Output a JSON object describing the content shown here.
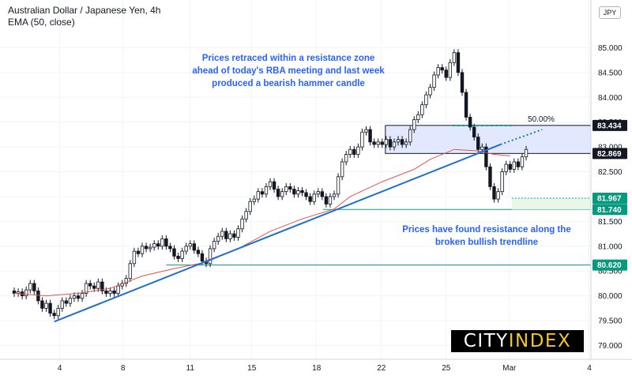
{
  "header": {
    "symbol": "Australian Dollar / Japanese Yen, 4h",
    "indicator": "EMA (50, close)",
    "currency": "JPY"
  },
  "annotations": {
    "top_line1": "Prices retraced within a resistance zone",
    "top_line2": "ahead of today's RBA meeting and last week",
    "top_line3": "produced a bearish hammer candle",
    "mid_line1": "Prices have found resistance along the",
    "mid_line2": "broken bullish trendline",
    "fib_label": "50.00%"
  },
  "logo": {
    "part1": "CITY ",
    "part2": "INDEX"
  },
  "colors": {
    "up_candle": "#ffffff",
    "down_candle": "#131722",
    "ema": "#e0544f",
    "trendline": "#1f6fd1",
    "zone_fill": "#dbe3ff",
    "support": "#089981",
    "resistance_tag": "#131722",
    "support_tag": "#089981",
    "annotation": "#2962ff",
    "fib": "#9c6fd3"
  },
  "chart_data": {
    "type": "candlestick",
    "title": "Australian Dollar / Japanese Yen, 4h",
    "x_tick_labels": [
      "4",
      "8",
      "11",
      "15",
      "18",
      "22",
      "25",
      "Mar",
      "4"
    ],
    "y_ticks": [
      79.0,
      79.5,
      80.0,
      80.5,
      81.0,
      81.5,
      82.0,
      82.5,
      83.0,
      83.5,
      84.0,
      84.5,
      85.0
    ],
    "ylim": [
      78.75,
      85.25
    ],
    "price_tags": [
      {
        "value": "83.434",
        "kind": "resistance"
      },
      {
        "value": "82.869",
        "kind": "resistance"
      },
      {
        "value": "81.967",
        "kind": "support"
      },
      {
        "value": "81.740",
        "kind": "support"
      },
      {
        "value": "80.620",
        "kind": "support"
      }
    ],
    "resistance_zone": [
      82.869,
      83.434
    ],
    "support_levels": [
      81.967,
      81.74,
      80.62
    ],
    "fib_level": 83.434,
    "trendline": {
      "start_day": 2.5,
      "start_price": 79.48,
      "end_day": 30.4,
      "end_price": 83.05
    },
    "trendline_extension": {
      "end_day": 33.0,
      "end_price": 83.35
    },
    "ema_series": {
      "name": "EMA (50, close)",
      "points": [
        [
          0,
          80.05
        ],
        [
          2,
          80.0
        ],
        [
          4,
          80.05
        ],
        [
          6,
          80.15
        ],
        [
          8,
          80.4
        ],
        [
          10,
          80.55
        ],
        [
          12,
          80.68
        ],
        [
          14,
          80.95
        ],
        [
          16,
          81.3
        ],
        [
          18,
          81.55
        ],
        [
          20,
          81.75
        ],
        [
          21,
          82.0
        ],
        [
          23,
          82.3
        ],
        [
          25,
          82.55
        ],
        [
          26,
          82.75
        ],
        [
          27.5,
          82.95
        ],
        [
          29,
          82.92
        ],
        [
          30,
          82.85
        ],
        [
          31,
          82.82
        ]
      ]
    },
    "candles": [
      [
        0.0,
        80.1,
        80.05
      ],
      [
        0.25,
        80.05,
        80.08
      ],
      [
        0.5,
        80.08,
        80.0
      ],
      [
        0.75,
        80.0,
        80.12
      ],
      [
        1.0,
        80.12,
        80.25
      ],
      [
        1.25,
        80.25,
        80.1
      ],
      [
        1.5,
        80.1,
        79.9
      ],
      [
        1.75,
        79.9,
        79.75
      ],
      [
        2.0,
        79.75,
        79.85
      ],
      [
        2.25,
        79.85,
        79.65
      ],
      [
        2.5,
        79.65,
        79.6
      ],
      [
        2.75,
        79.6,
        79.75
      ],
      [
        3.0,
        79.75,
        79.9
      ],
      [
        3.25,
        79.9,
        79.85
      ],
      [
        3.5,
        79.85,
        79.95
      ],
      [
        3.75,
        79.95,
        80.0
      ],
      [
        4.0,
        80.0,
        79.95
      ],
      [
        4.25,
        79.95,
        80.05
      ],
      [
        4.5,
        80.05,
        80.25
      ],
      [
        4.75,
        80.25,
        80.2
      ],
      [
        5.0,
        80.2,
        80.15
      ],
      [
        5.25,
        80.15,
        80.28
      ],
      [
        5.5,
        80.28,
        80.1
      ],
      [
        5.75,
        80.1,
        80.05
      ],
      [
        6.0,
        80.05,
        80.1
      ],
      [
        6.25,
        80.1,
        80.05
      ],
      [
        6.5,
        80.05,
        80.2
      ],
      [
        6.75,
        80.2,
        80.25
      ],
      [
        7.0,
        80.25,
        80.35
      ],
      [
        7.25,
        80.35,
        80.65
      ],
      [
        7.5,
        80.65,
        80.9
      ],
      [
        7.75,
        80.9,
        80.85
      ],
      [
        8.0,
        80.85,
        81.0
      ],
      [
        8.25,
        81.0,
        80.95
      ],
      [
        8.5,
        80.95,
        80.98
      ],
      [
        8.75,
        80.98,
        81.05
      ],
      [
        9.0,
        81.05,
        81.0
      ],
      [
        9.25,
        81.0,
        81.15
      ],
      [
        9.5,
        81.15,
        81.0
      ],
      [
        9.75,
        81.0,
        80.95
      ],
      [
        10.0,
        80.95,
        80.8
      ],
      [
        10.25,
        80.8,
        80.75
      ],
      [
        10.5,
        80.75,
        80.9
      ],
      [
        10.75,
        80.9,
        81.0
      ],
      [
        11.0,
        81.0,
        81.05
      ],
      [
        11.25,
        81.05,
        80.92
      ],
      [
        11.5,
        80.92,
        80.85
      ],
      [
        11.75,
        80.85,
        80.7
      ],
      [
        12.0,
        80.7,
        80.65
      ],
      [
        12.25,
        80.65,
        80.95
      ],
      [
        12.5,
        80.95,
        81.1
      ],
      [
        12.75,
        81.1,
        81.2
      ],
      [
        13.0,
        81.2,
        81.3
      ],
      [
        13.25,
        81.3,
        81.15
      ],
      [
        13.5,
        81.15,
        81.25
      ],
      [
        13.75,
        81.25,
        81.18
      ],
      [
        14.0,
        81.18,
        81.35
      ],
      [
        14.25,
        81.35,
        81.55
      ],
      [
        14.5,
        81.55,
        81.7
      ],
      [
        14.75,
        81.7,
        81.9
      ],
      [
        15.0,
        81.9,
        81.95
      ],
      [
        15.25,
        81.95,
        82.1
      ],
      [
        15.5,
        82.1,
        82.05
      ],
      [
        15.75,
        82.05,
        82.2
      ],
      [
        16.0,
        82.2,
        82.3
      ],
      [
        16.25,
        82.3,
        82.15
      ],
      [
        16.5,
        82.15,
        82.0
      ],
      [
        16.75,
        82.0,
        82.1
      ],
      [
        17.0,
        82.1,
        82.2
      ],
      [
        17.25,
        82.2,
        82.15
      ],
      [
        17.5,
        82.15,
        82.05
      ],
      [
        17.75,
        82.05,
        82.12
      ],
      [
        18.0,
        82.12,
        82.08
      ],
      [
        18.25,
        82.08,
        82.0
      ],
      [
        18.5,
        82.0,
        81.9
      ],
      [
        18.75,
        81.9,
        82.05
      ],
      [
        19.0,
        82.05,
        82.1
      ],
      [
        19.25,
        82.1,
        82.0
      ],
      [
        19.5,
        82.0,
        81.85
      ],
      [
        19.75,
        81.85,
        82.0
      ],
      [
        20.0,
        82.0,
        82.05
      ],
      [
        20.25,
        82.05,
        82.4
      ],
      [
        20.5,
        82.4,
        82.7
      ],
      [
        20.75,
        82.7,
        82.85
      ],
      [
        21.0,
        82.85,
        82.95
      ],
      [
        21.25,
        82.95,
        82.85
      ],
      [
        21.5,
        82.85,
        83.0
      ],
      [
        21.75,
        83.0,
        83.3
      ],
      [
        22.0,
        83.3,
        83.35
      ],
      [
        22.25,
        83.35,
        83.1
      ],
      [
        22.5,
        83.1,
        83.05
      ],
      [
        22.75,
        83.05,
        83.1
      ],
      [
        23.0,
        83.1,
        83.05
      ],
      [
        23.25,
        83.05,
        83.15
      ],
      [
        23.5,
        83.15,
        83.0
      ],
      [
        23.75,
        83.0,
        83.1
      ],
      [
        24.0,
        83.1,
        83.15
      ],
      [
        24.25,
        83.15,
        83.05
      ],
      [
        24.5,
        83.05,
        83.1
      ],
      [
        24.75,
        83.1,
        83.35
      ],
      [
        25.0,
        83.35,
        83.55
      ],
      [
        25.25,
        83.55,
        83.65
      ],
      [
        25.5,
        83.65,
        83.85
      ],
      [
        25.75,
        83.85,
        84.05
      ],
      [
        26.0,
        84.05,
        84.2
      ],
      [
        26.25,
        84.2,
        84.45
      ],
      [
        26.5,
        84.45,
        84.6
      ],
      [
        26.75,
        84.6,
        84.55
      ],
      [
        27.0,
        84.55,
        84.4
      ],
      [
        27.25,
        84.4,
        84.7
      ],
      [
        27.5,
        84.7,
        84.9
      ],
      [
        27.75,
        84.9,
        84.5
      ],
      [
        28.0,
        84.5,
        84.1
      ],
      [
        28.25,
        84.1,
        83.6
      ],
      [
        28.5,
        83.6,
        83.4
      ],
      [
        28.75,
        83.4,
        83.2
      ],
      [
        29.0,
        83.2,
        82.95
      ],
      [
        29.25,
        82.95,
        83.0
      ],
      [
        29.5,
        83.0,
        82.6
      ],
      [
        29.75,
        82.6,
        82.2
      ],
      [
        30.0,
        82.2,
        81.95
      ],
      [
        30.25,
        81.95,
        82.1
      ],
      [
        30.5,
        82.1,
        82.5
      ],
      [
        30.75,
        82.5,
        82.65
      ],
      [
        31.0,
        82.65,
        82.55
      ],
      [
        31.25,
        82.55,
        82.7
      ],
      [
        31.5,
        82.7,
        82.6
      ],
      [
        31.75,
        82.6,
        82.8
      ],
      [
        32.0,
        82.8,
        82.95
      ]
    ]
  }
}
